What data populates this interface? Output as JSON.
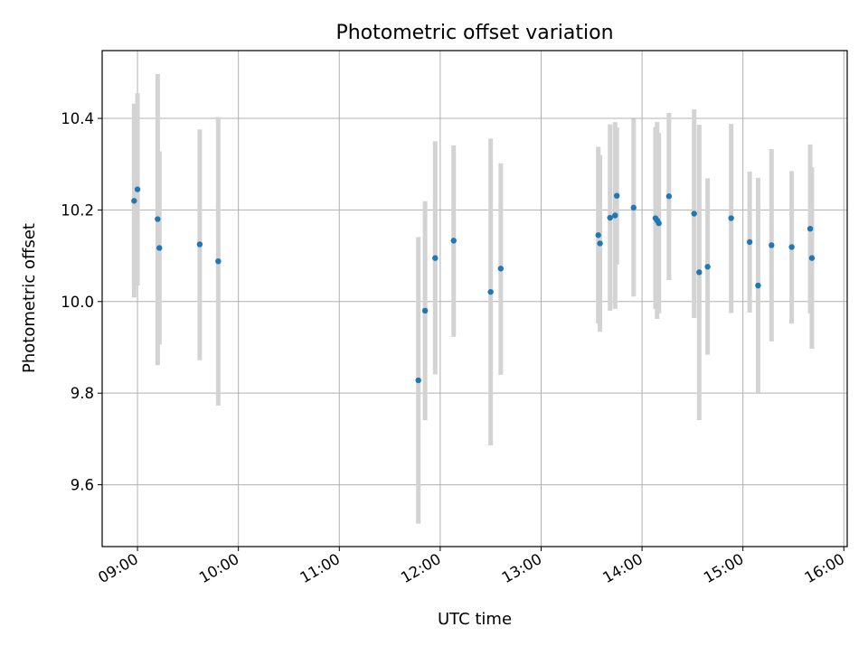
{
  "chart_data": {
    "type": "scatter",
    "title": "Photometric offset variation",
    "xlabel": "UTC time",
    "ylabel": "Photometric offset",
    "x_tick_labels": [
      "09:00",
      "10:00",
      "11:00",
      "12:00",
      "13:00",
      "14:00",
      "15:00",
      "16:00"
    ],
    "y_tick_labels": [
      "9.6",
      "9.8",
      "10.0",
      "10.2",
      "10.4"
    ],
    "y_ticks": [
      9.6,
      9.8,
      10.0,
      10.2,
      10.4
    ],
    "xlim": [
      "08:39",
      "16:02"
    ],
    "ylim": [
      9.465,
      10.548
    ],
    "grid": true,
    "errorbar_color": "#d3d3d3",
    "marker_color": "#1f77b4",
    "points": [
      {
        "time": "08:58",
        "y": 10.22,
        "low": 10.009,
        "high": 10.432
      },
      {
        "time": "09:00",
        "y": 10.245,
        "low": 10.035,
        "high": 10.455
      },
      {
        "time": "09:12",
        "y": 10.18,
        "low": 9.861,
        "high": 10.497
      },
      {
        "time": "09:13",
        "y": 10.117,
        "low": 9.906,
        "high": 10.328
      },
      {
        "time": "09:37",
        "y": 10.125,
        "low": 9.872,
        "high": 10.376
      },
      {
        "time": "09:48",
        "y": 10.088,
        "low": 9.773,
        "high": 10.403
      },
      {
        "time": "11:47",
        "y": 9.828,
        "low": 9.515,
        "high": 10.141
      },
      {
        "time": "11:51",
        "y": 9.98,
        "low": 9.741,
        "high": 10.219
      },
      {
        "time": "11:57",
        "y": 10.095,
        "low": 9.841,
        "high": 10.35
      },
      {
        "time": "12:08",
        "y": 10.133,
        "low": 9.923,
        "high": 10.341
      },
      {
        "time": "12:30",
        "y": 10.021,
        "low": 9.686,
        "high": 10.356
      },
      {
        "time": "12:36",
        "y": 10.072,
        "low": 9.84,
        "high": 10.302
      },
      {
        "time": "13:34",
        "y": 10.145,
        "low": 9.952,
        "high": 10.338
      },
      {
        "time": "13:35",
        "y": 10.127,
        "low": 9.934,
        "high": 10.32
      },
      {
        "time": "13:41",
        "y": 10.183,
        "low": 9.98,
        "high": 10.387
      },
      {
        "time": "13:44",
        "y": 10.188,
        "low": 9.984,
        "high": 10.392
      },
      {
        "time": "13:45",
        "y": 10.231,
        "low": 10.081,
        "high": 10.38
      },
      {
        "time": "13:55",
        "y": 10.205,
        "low": 10.011,
        "high": 10.399
      },
      {
        "time": "14:08",
        "y": 10.182,
        "low": 9.984,
        "high": 10.381
      },
      {
        "time": "14:09",
        "y": 10.177,
        "low": 9.962,
        "high": 10.392
      },
      {
        "time": "14:10",
        "y": 10.171,
        "low": 9.974,
        "high": 10.368
      },
      {
        "time": "14:16",
        "y": 10.23,
        "low": 10.047,
        "high": 10.412
      },
      {
        "time": "14:31",
        "y": 10.192,
        "low": 9.964,
        "high": 10.42
      },
      {
        "time": "14:34",
        "y": 10.064,
        "low": 9.741,
        "high": 10.386
      },
      {
        "time": "14:39",
        "y": 10.076,
        "low": 9.884,
        "high": 10.269
      },
      {
        "time": "14:53",
        "y": 10.182,
        "low": 9.975,
        "high": 10.388
      },
      {
        "time": "15:04",
        "y": 10.13,
        "low": 9.976,
        "high": 10.284
      },
      {
        "time": "15:09",
        "y": 10.035,
        "low": 9.801,
        "high": 10.27
      },
      {
        "time": "15:17",
        "y": 10.123,
        "low": 9.913,
        "high": 10.333
      },
      {
        "time": "15:29",
        "y": 10.119,
        "low": 9.952,
        "high": 10.285
      },
      {
        "time": "15:40",
        "y": 10.159,
        "low": 9.974,
        "high": 10.343
      },
      {
        "time": "15:41",
        "y": 10.095,
        "low": 9.897,
        "high": 10.293
      }
    ]
  }
}
